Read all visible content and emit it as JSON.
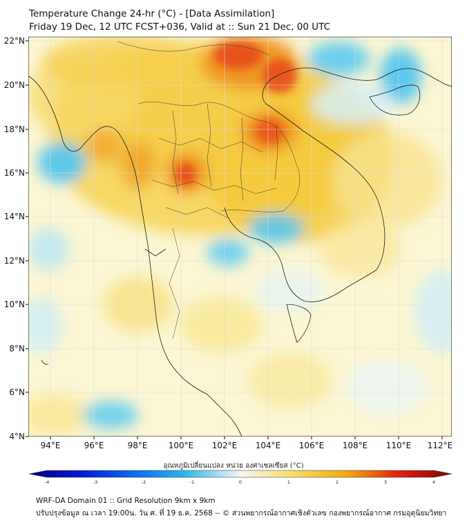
{
  "header": {
    "title_line1": "Temperature Change 24-hr (°C) - [Data Assimilation]",
    "title_line2": "Friday 19 Dec, 12 UTC FCST+036, Valid at :: Sun 21 Dec, 00 UTC"
  },
  "map": {
    "lat_labels": [
      "22°N",
      "20°N",
      "18°N",
      "16°N",
      "14°N",
      "12°N",
      "10°N",
      "8°N",
      "6°N",
      "4°N"
    ],
    "lon_labels": [
      "94°E",
      "96°E",
      "98°E",
      "100°E",
      "102°E",
      "104°E",
      "106°E",
      "108°E",
      "110°E",
      "112°E"
    ],
    "lat_values": [
      22,
      20,
      18,
      16,
      14,
      12,
      10,
      8,
      6,
      4
    ],
    "lon_values": [
      94,
      96,
      98,
      100,
      102,
      104,
      106,
      108,
      110,
      112
    ],
    "lat_range": [
      4,
      22.25
    ],
    "lon_range": [
      93,
      112.5
    ]
  },
  "colorbar": {
    "label": "อุณหภูมิเปลี่ยนแปลง หน่วย องศาเซลเซียส (°C)",
    "tick_labels": [
      "-4",
      "-3",
      "-2",
      "-1",
      "0",
      "1",
      "2",
      "3",
      "4"
    ],
    "tick_values": [
      -4,
      -3,
      -2,
      -1,
      0,
      1,
      2,
      3,
      4
    ],
    "range": [
      -4,
      4
    ]
  },
  "footer": {
    "line1": "WRF-DA Domain 01 :: Grid Resolution 9km x 9km",
    "line2": "ปรับปรุงข้อมูล ณ เวลา 19:00น. วัน ศ. ที่ 19 ธ.ค. 2568 -- © ส่วนพยากรณ์อากาศเชิงตัวเลข กองพยากรณ์อากาศ กรมอุตุนิยมวิทยา"
  },
  "colors": {
    "cold_max": "#00007f",
    "cold": "#2fb8ea",
    "neutral": "#f4f4f4",
    "warm": "#f3c230",
    "hot_max": "#7f0000"
  }
}
